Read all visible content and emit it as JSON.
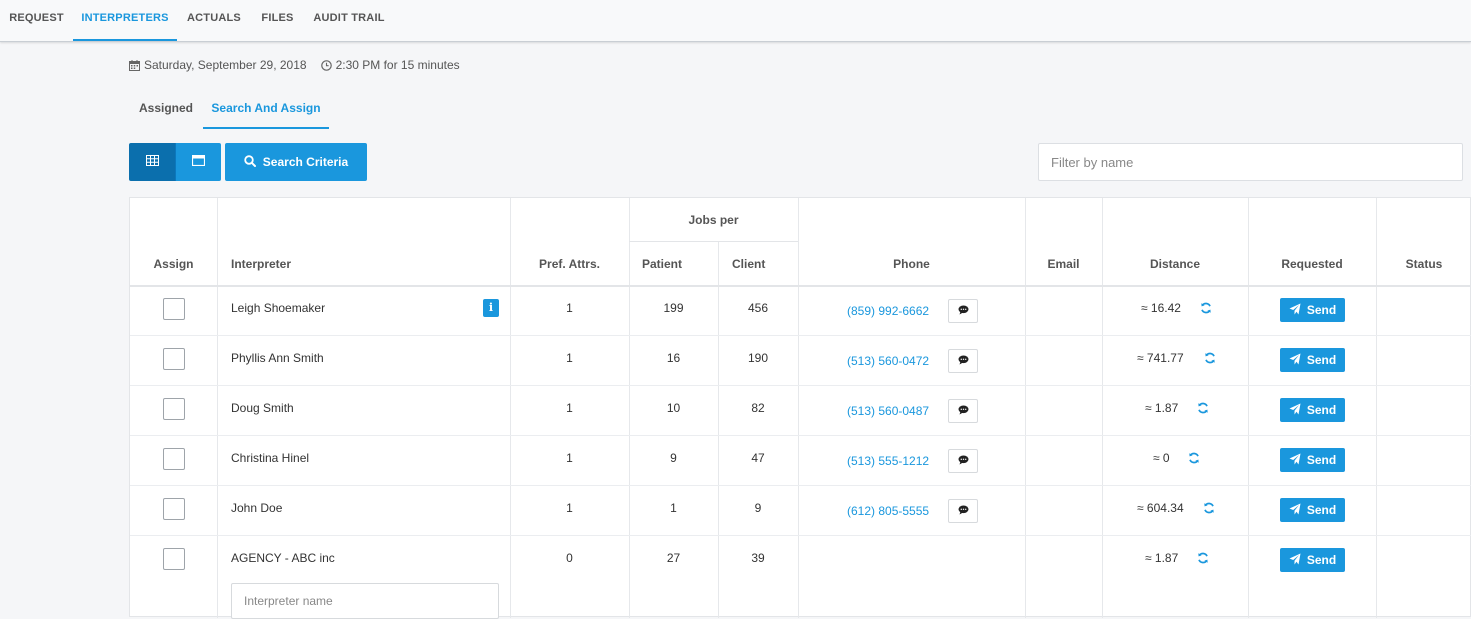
{
  "nav": {
    "tabs": [
      {
        "label": "REQUEST",
        "active": false
      },
      {
        "label": "INTERPRETERS",
        "active": true
      },
      {
        "label": "ACTUALS",
        "active": false
      },
      {
        "label": "FILES",
        "active": false
      },
      {
        "label": "AUDIT TRAIL",
        "active": false
      }
    ]
  },
  "appointment": {
    "date": "Saturday, September 29, 2018",
    "time": "2:30 PM for 15 minutes",
    "date_icon": "calendar-icon",
    "time_icon": "clock-icon"
  },
  "subtabs": [
    {
      "label": "Assigned",
      "active": false
    },
    {
      "label": "Search And Assign",
      "active": true
    }
  ],
  "toolbar": {
    "grid_view_icon": "table-icon",
    "card_view_icon": "window-icon",
    "search_criteria_label": "Search Criteria",
    "filter_placeholder": "Filter by name"
  },
  "table": {
    "headers": {
      "assign": "Assign",
      "interpreter": "Interpreter",
      "pref_attrs": "Pref. Attrs.",
      "jobs_per": "Jobs per",
      "patient": "Patient",
      "client": "Client",
      "phone": "Phone",
      "email": "Email",
      "distance": "Distance",
      "requested": "Requested",
      "status": "Status"
    },
    "rows": [
      {
        "name": "Leigh Shoemaker",
        "pref": "1",
        "patient": "199",
        "client": "456",
        "phone": "(859) 992-6662",
        "email": "",
        "distance": "≈ 16.42",
        "send": "Send",
        "info": "i"
      },
      {
        "name": "Phyllis Ann Smith",
        "pref": "1",
        "patient": "16",
        "client": "190",
        "phone": "(513) 560-0472",
        "email": "",
        "distance": "≈ 741.77",
        "send": "Send"
      },
      {
        "name": "Doug Smith",
        "pref": "1",
        "patient": "10",
        "client": "82",
        "phone": "(513) 560-0487",
        "email": "",
        "distance": "≈ 1.87",
        "send": "Send"
      },
      {
        "name": "Christina Hinel",
        "pref": "1",
        "patient": "9",
        "client": "47",
        "phone": "(513) 555-1212",
        "email": "",
        "distance": "≈ 0",
        "send": "Send"
      },
      {
        "name": "John Doe",
        "pref": "1",
        "patient": "1",
        "client": "9",
        "phone": "(612) 805-5555",
        "email": "",
        "distance": "≈ 604.34",
        "send": "Send"
      },
      {
        "name": "AGENCY - ABC inc",
        "pref": "0",
        "patient": "27",
        "client": "39",
        "phone": "",
        "email": "",
        "distance": "≈ 1.87",
        "send": "Send",
        "name_input_placeholder": "Interpreter name"
      }
    ]
  },
  "colors": {
    "accent": "#1a97dd",
    "accent_dark": "#0b6fad"
  }
}
